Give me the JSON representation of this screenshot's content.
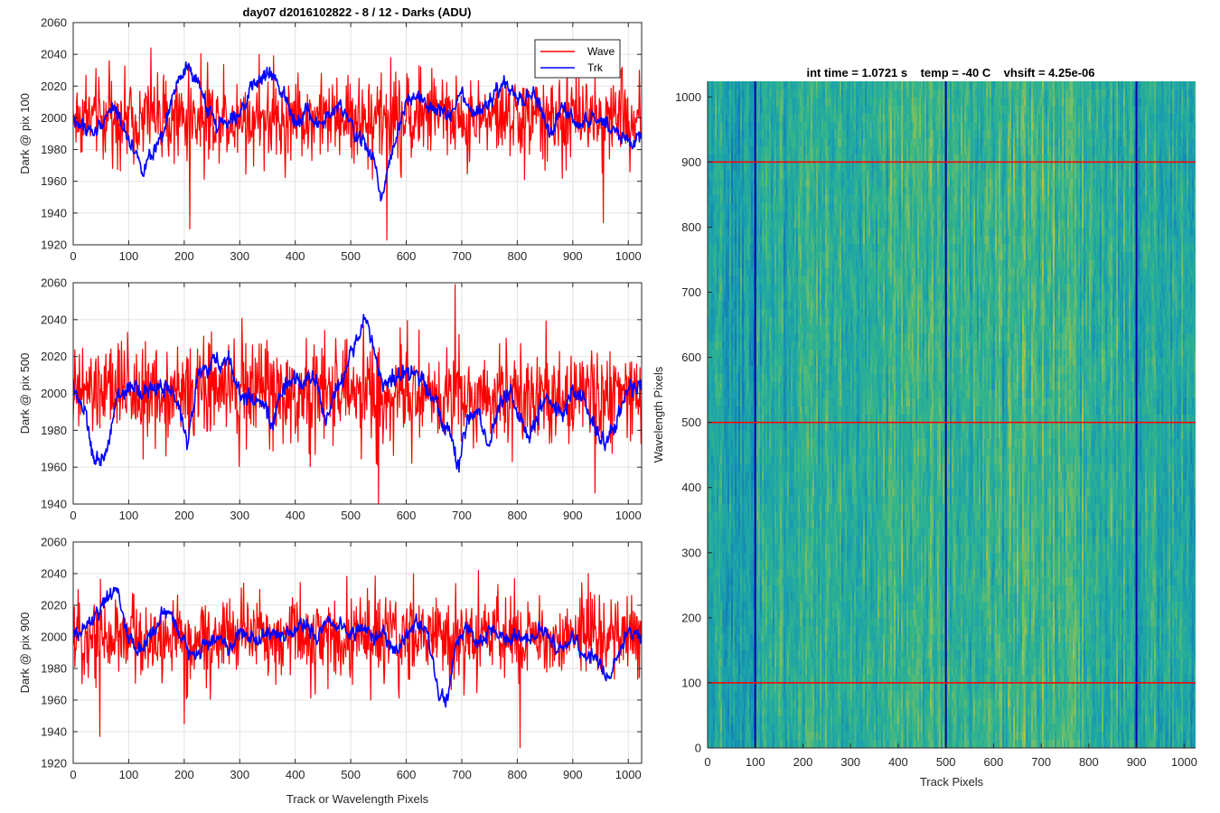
{
  "figure": {
    "title": "day07 d2016102822 - 8 / 12 - Darks (ADU)"
  },
  "chart_data": [
    {
      "type": "line",
      "ylabel": "Dark @ pix 100",
      "xlabel": "",
      "xlim": [
        0,
        1024
      ],
      "ylim": [
        1920,
        2060
      ],
      "xticks": [
        0,
        100,
        200,
        300,
        400,
        500,
        600,
        700,
        800,
        900,
        1000
      ],
      "yticks": [
        1920,
        1940,
        1960,
        1980,
        2000,
        2020,
        2040,
        2060
      ],
      "grid": true,
      "legend": {
        "placement": "top-right",
        "entries": [
          "Wave",
          "Trk"
        ]
      },
      "series": [
        {
          "name": "Wave",
          "color": "#ff0000",
          "center": 2000,
          "spread": 12,
          "anchors": [
            [
              0,
              2000
            ],
            [
              1024,
              2000
            ]
          ],
          "spikes": [
            [
              140,
              2044
            ],
            [
              210,
              1930
            ],
            [
              335,
              2040
            ],
            [
              565,
              1923
            ],
            [
              955,
              1934
            ],
            [
              1020,
              2030
            ]
          ]
        },
        {
          "name": "Trk",
          "color": "#0000ff",
          "center": 2000,
          "spread": 4,
          "anchors": [
            [
              0,
              1998
            ],
            [
              40,
              1990
            ],
            [
              70,
              2008
            ],
            [
              100,
              1988
            ],
            [
              125,
              1968
            ],
            [
              160,
              1985
            ],
            [
              180,
              2015
            ],
            [
              205,
              2032
            ],
            [
              225,
              2020
            ],
            [
              245,
              2005
            ],
            [
              260,
              1995
            ],
            [
              280,
              2000
            ],
            [
              300,
              2005
            ],
            [
              330,
              2022
            ],
            [
              355,
              2028
            ],
            [
              380,
              2015
            ],
            [
              400,
              1998
            ],
            [
              420,
              2005
            ],
            [
              440,
              1995
            ],
            [
              460,
              2000
            ],
            [
              480,
              2008
            ],
            [
              500,
              1995
            ],
            [
              520,
              1985
            ],
            [
              540,
              1975
            ],
            [
              555,
              1950
            ],
            [
              575,
              1980
            ],
            [
              600,
              2012
            ],
            [
              625,
              2015
            ],
            [
              640,
              2005
            ],
            [
              660,
              2005
            ],
            [
              680,
              2000
            ],
            [
              700,
              2015
            ],
            [
              720,
              2000
            ],
            [
              750,
              2010
            ],
            [
              780,
              2022
            ],
            [
              800,
              2010
            ],
            [
              830,
              2015
            ],
            [
              860,
              1990
            ],
            [
              880,
              2005
            ],
            [
              910,
              1995
            ],
            [
              940,
              2000
            ],
            [
              970,
              1995
            ],
            [
              1000,
              1985
            ],
            [
              1024,
              1985
            ]
          ]
        }
      ]
    },
    {
      "type": "line",
      "ylabel": "Dark @ pix 500",
      "xlabel": "",
      "xlim": [
        0,
        1024
      ],
      "ylim": [
        1940,
        2060
      ],
      "xticks": [
        0,
        100,
        200,
        300,
        400,
        500,
        600,
        700,
        800,
        900,
        1000
      ],
      "yticks": [
        1940,
        1960,
        1980,
        2000,
        2020,
        2040,
        2060
      ],
      "grid": true,
      "series": [
        {
          "name": "Wave",
          "color": "#ff0000",
          "center": 2000,
          "spread": 12,
          "anchors": [
            [
              0,
              2000
            ],
            [
              1024,
              2000
            ]
          ],
          "spikes": [
            [
              688,
              2059
            ],
            [
              550,
              1940
            ],
            [
              780,
              2030
            ],
            [
              940,
              1946
            ],
            [
              420,
              2030
            ]
          ]
        },
        {
          "name": "Trk",
          "color": "#0000ff",
          "center": 2000,
          "spread": 4,
          "anchors": [
            [
              0,
              2005
            ],
            [
              20,
              1990
            ],
            [
              40,
              1960
            ],
            [
              55,
              1965
            ],
            [
              80,
              1998
            ],
            [
              100,
              2003
            ],
            [
              130,
              2000
            ],
            [
              160,
              2005
            ],
            [
              180,
              2000
            ],
            [
              205,
              1975
            ],
            [
              225,
              2010
            ],
            [
              250,
              2015
            ],
            [
              280,
              2020
            ],
            [
              300,
              2000
            ],
            [
              330,
              1995
            ],
            [
              360,
              1985
            ],
            [
              380,
              2005
            ],
            [
              400,
              2005
            ],
            [
              420,
              2010
            ],
            [
              440,
              2005
            ],
            [
              455,
              1985
            ],
            [
              470,
              2000
            ],
            [
              490,
              2010
            ],
            [
              510,
              2030
            ],
            [
              525,
              2040
            ],
            [
              540,
              2025
            ],
            [
              560,
              2005
            ],
            [
              580,
              2008
            ],
            [
              600,
              2010
            ],
            [
              620,
              2010
            ],
            [
              640,
              2005
            ],
            [
              660,
              1990
            ],
            [
              680,
              1975
            ],
            [
              695,
              1960
            ],
            [
              710,
              1985
            ],
            [
              730,
              1990
            ],
            [
              750,
              1970
            ],
            [
              770,
              1998
            ],
            [
              790,
              2000
            ],
            [
              800,
              1990
            ],
            [
              820,
              1975
            ],
            [
              840,
              1990
            ],
            [
              860,
              1997
            ],
            [
              880,
              1987
            ],
            [
              900,
              2000
            ],
            [
              920,
              1998
            ],
            [
              940,
              1980
            ],
            [
              960,
              1975
            ],
            [
              980,
              1985
            ],
            [
              1000,
              2005
            ],
            [
              1024,
              2000
            ]
          ]
        }
      ]
    },
    {
      "type": "line",
      "ylabel": "Dark @ pix 900",
      "xlabel": "Track or Wavelength Pixels",
      "xlim": [
        0,
        1024
      ],
      "ylim": [
        1920,
        2060
      ],
      "xticks": [
        0,
        100,
        200,
        300,
        400,
        500,
        600,
        700,
        800,
        900,
        1000
      ],
      "yticks": [
        1920,
        1940,
        1960,
        1980,
        2000,
        2020,
        2040,
        2060
      ],
      "grid": true,
      "series": [
        {
          "name": "Wave",
          "color": "#ff0000",
          "center": 2000,
          "spread": 12,
          "anchors": [
            [
              0,
              2000
            ],
            [
              1024,
              2000
            ]
          ],
          "spikes": [
            [
              48,
              1937
            ],
            [
              200,
              1945
            ],
            [
              613,
              2040
            ],
            [
              805,
              1930
            ],
            [
              730,
              2042
            ]
          ]
        },
        {
          "name": "Trk",
          "color": "#0000ff",
          "center": 2000,
          "spread": 4,
          "anchors": [
            [
              0,
              2000
            ],
            [
              20,
              2005
            ],
            [
              45,
              2015
            ],
            [
              65,
              2025
            ],
            [
              80,
              2030
            ],
            [
              95,
              2005
            ],
            [
              115,
              1990
            ],
            [
              140,
              2000
            ],
            [
              160,
              2015
            ],
            [
              180,
              2012
            ],
            [
              200,
              1995
            ],
            [
              220,
              1985
            ],
            [
              240,
              1998
            ],
            [
              260,
              2000
            ],
            [
              280,
              1990
            ],
            [
              300,
              2005
            ],
            [
              320,
              2000
            ],
            [
              340,
              1998
            ],
            [
              360,
              2005
            ],
            [
              380,
              2000
            ],
            [
              400,
              2005
            ],
            [
              420,
              2008
            ],
            [
              440,
              2000
            ],
            [
              460,
              2010
            ],
            [
              480,
              2010
            ],
            [
              500,
              2000
            ],
            [
              520,
              2005
            ],
            [
              540,
              2000
            ],
            [
              560,
              2000
            ],
            [
              580,
              1990
            ],
            [
              600,
              2000
            ],
            [
              620,
              2010
            ],
            [
              640,
              2000
            ],
            [
              650,
              1980
            ],
            [
              660,
              1962
            ],
            [
              675,
              1962
            ],
            [
              690,
              1995
            ],
            [
              710,
              2005
            ],
            [
              730,
              1995
            ],
            [
              760,
              2005
            ],
            [
              780,
              1998
            ],
            [
              800,
              2000
            ],
            [
              820,
              1995
            ],
            [
              840,
              2005
            ],
            [
              860,
              2000
            ],
            [
              880,
              1990
            ],
            [
              900,
              2000
            ],
            [
              920,
              1985
            ],
            [
              940,
              1990
            ],
            [
              960,
              1975
            ],
            [
              980,
              1985
            ],
            [
              1000,
              2005
            ],
            [
              1024,
              2000
            ]
          ]
        }
      ]
    },
    {
      "type": "heatmap",
      "title": "int time = 1.0721 s    temp = -40 C    vhsift = 4.25e-06",
      "xlabel": "Track Pixels",
      "ylabel": "Wavelength Pixels",
      "xlim": [
        0,
        1024
      ],
      "ylim": [
        0,
        1024
      ],
      "xticks": [
        0,
        100,
        200,
        300,
        400,
        500,
        600,
        700,
        800,
        900,
        1000
      ],
      "yticks": [
        0,
        100,
        200,
        300,
        400,
        500,
        600,
        700,
        800,
        900,
        1000
      ],
      "colormap": "parula",
      "vertical_lines": {
        "color": "#0000aa",
        "x": [
          100,
          500,
          900
        ]
      },
      "horizontal_lines": {
        "color": "#ff0000",
        "y": [
          100,
          500,
          900
        ]
      }
    }
  ]
}
